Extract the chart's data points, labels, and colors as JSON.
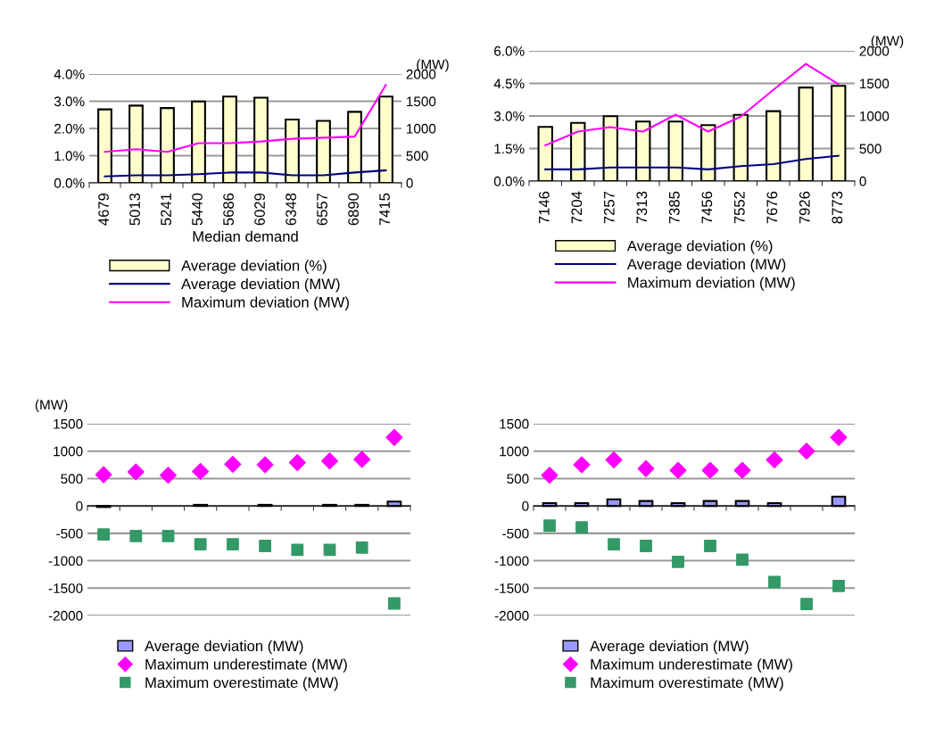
{
  "chart_data": [
    {
      "type": "bar",
      "xlabel": "Median demand",
      "y2label": "(MW)",
      "categories": [
        "4679",
        "5013",
        "5241",
        "5440",
        "5686",
        "6029",
        "6348",
        "6557",
        "6890",
        "7415"
      ],
      "series": [
        {
          "name": "Average deviation (%)",
          "color": "#ffffcc",
          "values": [
            2.7,
            2.84,
            2.75,
            2.99,
            3.17,
            3.13,
            2.33,
            2.28,
            2.61,
            3.17
          ]
        },
        {
          "name": "Average deviation (MW)",
          "type": "line",
          "axis": "y2",
          "color": "#000080",
          "values": [
            120,
            140,
            140,
            160,
            190,
            190,
            140,
            140,
            190,
            230
          ]
        },
        {
          "name": "Maximum deviation (MW)",
          "type": "line",
          "axis": "y2",
          "color": "#ff00ff",
          "values": [
            570,
            620,
            570,
            730,
            730,
            760,
            810,
            830,
            850,
            1800
          ]
        }
      ],
      "ylim": [
        0,
        4
      ],
      "yticks": [
        {
          "value": 0,
          "label": "0.0%"
        },
        {
          "value": 1,
          "label": "1.0%"
        },
        {
          "value": 2,
          "label": "2.0%"
        },
        {
          "value": 3,
          "label": "3.0%"
        },
        {
          "value": 4,
          "label": "4.0%"
        }
      ],
      "y2lim": [
        0,
        2000
      ],
      "y2ticks": [
        0,
        500,
        1000,
        1500,
        2000
      ],
      "grid": "y",
      "legend": "bottom"
    },
    {
      "type": "bar",
      "y2label": "(MW)",
      "categories": [
        "7146",
        "7204",
        "7257",
        "7313",
        "7385",
        "7456",
        "7552",
        "7676",
        "7926",
        "8773"
      ],
      "series": [
        {
          "name": "Average deviation (%)",
          "color": "#ffffcc",
          "values": [
            2.5,
            2.68,
            2.99,
            2.74,
            2.74,
            2.58,
            3.05,
            3.22,
            4.31,
            4.39
          ]
        },
        {
          "name": "Average deviation (MW)",
          "type": "line",
          "axis": "y2",
          "color": "#000080",
          "values": [
            180,
            180,
            210,
            210,
            210,
            180,
            230,
            260,
            340,
            390
          ]
        },
        {
          "name": "Maximum deviation (MW)",
          "type": "line",
          "axis": "y2",
          "color": "#ff00ff",
          "values": [
            550,
            760,
            830,
            760,
            1020,
            760,
            990,
            1400,
            1800,
            1490
          ]
        }
      ],
      "ylim": [
        0,
        6
      ],
      "yticks": [
        {
          "value": 0,
          "label": "0.0%"
        },
        {
          "value": 1.5,
          "label": "1.5%"
        },
        {
          "value": 3,
          "label": "3.0%"
        },
        {
          "value": 4.5,
          "label": "4.5%"
        },
        {
          "value": 6,
          "label": "6.0%"
        }
      ],
      "y2lim": [
        0,
        2000
      ],
      "y2ticks": [
        0,
        500,
        1000,
        1500,
        2000
      ],
      "grid": "y",
      "legend": "bottom"
    },
    {
      "type": "bar",
      "ylabel": "(MW)",
      "categories": [
        null,
        null,
        null,
        null,
        null,
        null,
        null,
        null,
        null,
        null
      ],
      "series": [
        {
          "name": "Average deviation (MW)",
          "color": "#9999ff",
          "values": [
            -20,
            null,
            null,
            20,
            null,
            20,
            null,
            20,
            20,
            80
          ]
        },
        {
          "name": "Maximum underestimate (MW)",
          "type": "scatter",
          "marker": "diamond",
          "color": "#ff00ff",
          "values": [
            570,
            620,
            560,
            630,
            760,
            750,
            790,
            820,
            850,
            1250
          ]
        },
        {
          "name": "Maximum overestimate (MW)",
          "type": "scatter",
          "marker": "square",
          "color": "#339966",
          "values": [
            -520,
            -550,
            -550,
            -700,
            -700,
            -730,
            -800,
            -800,
            -760,
            -1780
          ]
        }
      ],
      "ylim": [
        -2000,
        1500
      ],
      "yticks": [
        -2000,
        -1500,
        -1000,
        -500,
        0,
        500,
        1000,
        1500
      ],
      "grid": "y",
      "legend": "bottom",
      "tick_labels": "y"
    },
    {
      "type": "bar",
      "categories": [
        null,
        null,
        null,
        null,
        null,
        null,
        null,
        null,
        null,
        null
      ],
      "series": [
        {
          "name": "Average deviation (MW)",
          "color": "#9999ff",
          "values": [
            50,
            50,
            120,
            90,
            50,
            90,
            90,
            50,
            null,
            170
          ]
        },
        {
          "name": "Maximum underestimate (MW)",
          "type": "scatter",
          "marker": "diamond",
          "color": "#ff00ff",
          "values": [
            560,
            750,
            840,
            680,
            650,
            650,
            650,
            840,
            1000,
            1250
          ]
        },
        {
          "name": "Maximum overestimate (MW)",
          "type": "scatter",
          "marker": "square",
          "color": "#339966",
          "values": [
            -360,
            -390,
            -700,
            -730,
            -1020,
            -730,
            -980,
            -1390,
            -1790,
            -1460
          ]
        }
      ],
      "ylim": [
        -2000,
        1500
      ],
      "yticks": [
        -2000,
        -1500,
        -1000,
        -500,
        0,
        500,
        1000,
        1500
      ],
      "grid": "y",
      "legend": "bottom",
      "tick_labels": "y"
    }
  ]
}
